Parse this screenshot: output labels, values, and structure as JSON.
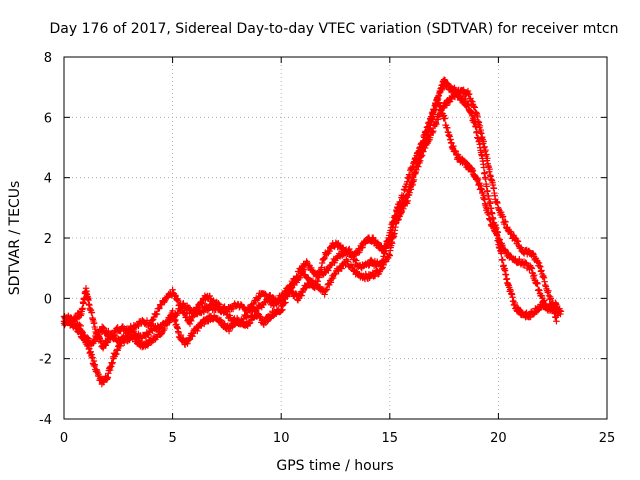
{
  "chart_data": {
    "type": "scatter",
    "title": "Day 176 of 2017, Sidereal Day-to-day VTEC variation (SDTVAR) for receiver mtcn",
    "xlabel": "GPS time / hours",
    "ylabel": "SDTVAR / TECUs",
    "xlim": [
      0,
      25
    ],
    "ylim": [
      -4,
      8
    ],
    "xticks": [
      0,
      5,
      10,
      15,
      20,
      25
    ],
    "yticks": [
      -4,
      -2,
      0,
      2,
      4,
      6,
      8
    ],
    "x_tick_labels": [
      "0",
      "5",
      "10",
      "15",
      "20",
      "25"
    ],
    "y_tick_labels": [
      "-4",
      "-2",
      "0",
      "2",
      "4",
      "6",
      "8"
    ],
    "grid": true,
    "marker": "+",
    "series": [
      {
        "name": "SDTVAR",
        "color": "#ff0000",
        "tracks": [
          [
            [
              0.0,
              -0.6
            ],
            [
              0.4,
              -0.7
            ],
            [
              0.8,
              -0.5
            ],
            [
              1.0,
              0.3
            ],
            [
              1.2,
              -0.3
            ],
            [
              1.5,
              -1.2
            ],
            [
              1.8,
              -1.6
            ],
            [
              2.1,
              -1.3
            ],
            [
              2.5,
              -1.0
            ],
            [
              3.0,
              -1.0
            ],
            [
              3.5,
              -0.8
            ],
            [
              4.0,
              -0.8
            ],
            [
              4.5,
              -0.2
            ],
            [
              5.0,
              0.2
            ],
            [
              5.4,
              -0.3
            ],
            [
              5.8,
              -0.8
            ],
            [
              6.2,
              -0.2
            ],
            [
              6.6,
              0.1
            ],
            [
              7.0,
              -0.2
            ],
            [
              7.5,
              -0.4
            ],
            [
              8.0,
              -0.2
            ],
            [
              8.5,
              -0.4
            ],
            [
              9.0,
              -0.3
            ],
            [
              9.5,
              0.1
            ],
            [
              10.0,
              -0.2
            ],
            [
              10.5,
              0.4
            ],
            [
              11.0,
              0.9
            ],
            [
              11.5,
              0.5
            ],
            [
              12.0,
              0.2
            ],
            [
              12.5,
              0.9
            ],
            [
              13.0,
              1.2
            ],
            [
              13.5,
              0.8
            ],
            [
              14.0,
              0.7
            ],
            [
              14.5,
              0.9
            ],
            [
              15.0,
              1.5
            ],
            [
              15.3,
              2.5
            ],
            [
              15.6,
              3.0
            ],
            [
              16.0,
              3.8
            ],
            [
              16.4,
              4.8
            ],
            [
              16.8,
              5.5
            ],
            [
              17.0,
              6.2
            ],
            [
              17.3,
              6.8
            ],
            [
              17.5,
              7.2
            ],
            [
              17.7,
              7.0
            ],
            [
              18.0,
              6.9
            ],
            [
              18.3,
              6.6
            ],
            [
              18.6,
              6.4
            ],
            [
              18.9,
              5.8
            ],
            [
              19.2,
              4.9
            ],
            [
              19.5,
              3.5
            ],
            [
              19.8,
              2.5
            ],
            [
              20.1,
              1.8
            ],
            [
              20.5,
              1.4
            ],
            [
              21.0,
              1.2
            ],
            [
              21.5,
              1.0
            ],
            [
              21.8,
              0.4
            ],
            [
              22.2,
              -0.3
            ],
            [
              22.6,
              -0.2
            ],
            [
              22.9,
              -0.5
            ]
          ],
          [
            [
              0.0,
              -0.8
            ],
            [
              0.4,
              -0.8
            ],
            [
              0.8,
              -1.0
            ],
            [
              1.1,
              -1.6
            ],
            [
              1.4,
              -2.2
            ],
            [
              1.7,
              -2.8
            ],
            [
              2.0,
              -2.6
            ],
            [
              2.3,
              -1.9
            ],
            [
              2.7,
              -1.4
            ],
            [
              3.2,
              -1.3
            ],
            [
              3.6,
              -1.6
            ],
            [
              4.0,
              -1.4
            ],
            [
              4.5,
              -1.1
            ],
            [
              5.0,
              -0.5
            ],
            [
              5.3,
              -1.2
            ],
            [
              5.6,
              -1.5
            ],
            [
              6.0,
              -1.1
            ],
            [
              6.4,
              -0.8
            ],
            [
              6.8,
              -0.6
            ],
            [
              7.2,
              -0.8
            ],
            [
              7.6,
              -1.0
            ],
            [
              8.0,
              -0.7
            ],
            [
              8.4,
              -0.9
            ],
            [
              8.8,
              -0.5
            ],
            [
              9.2,
              -0.8
            ],
            [
              9.6,
              -0.5
            ],
            [
              10.0,
              -0.4
            ],
            [
              10.4,
              0.3
            ],
            [
              10.8,
              0.0
            ],
            [
              11.2,
              0.5
            ],
            [
              11.6,
              0.4
            ],
            [
              12.0,
              1.4
            ],
            [
              12.4,
              1.8
            ],
            [
              12.8,
              1.7
            ],
            [
              13.2,
              1.4
            ],
            [
              13.6,
              1.6
            ],
            [
              14.0,
              2.0
            ],
            [
              14.3,
              1.9
            ],
            [
              14.7,
              1.6
            ],
            [
              15.0,
              1.9
            ],
            [
              15.3,
              2.9
            ],
            [
              15.6,
              3.4
            ],
            [
              16.0,
              4.3
            ],
            [
              16.3,
              4.8
            ],
            [
              16.6,
              5.4
            ],
            [
              16.9,
              6.0
            ],
            [
              17.2,
              6.6
            ],
            [
              17.5,
              6.0
            ],
            [
              17.8,
              5.2
            ],
            [
              18.1,
              4.7
            ],
            [
              18.4,
              4.5
            ],
            [
              18.7,
              4.3
            ],
            [
              19.0,
              4.0
            ],
            [
              19.3,
              3.4
            ],
            [
              19.6,
              2.6
            ],
            [
              19.9,
              2.2
            ],
            [
              20.2,
              1.2
            ],
            [
              20.5,
              0.3
            ],
            [
              20.8,
              -0.3
            ],
            [
              21.1,
              -0.5
            ],
            [
              21.4,
              -0.6
            ],
            [
              21.7,
              -0.4
            ],
            [
              22.0,
              -0.2
            ],
            [
              22.4,
              -0.4
            ],
            [
              22.8,
              -0.5
            ]
          ],
          [
            [
              0.0,
              -0.7
            ],
            [
              0.5,
              -0.9
            ],
            [
              0.9,
              -1.3
            ],
            [
              1.3,
              -1.5
            ],
            [
              1.7,
              -1.0
            ],
            [
              2.1,
              -1.2
            ],
            [
              2.6,
              -1.4
            ],
            [
              3.1,
              -1.1
            ],
            [
              3.6,
              -1.3
            ],
            [
              4.1,
              -1.0
            ],
            [
              4.6,
              -0.9
            ],
            [
              5.1,
              -0.6
            ],
            [
              5.5,
              -0.2
            ],
            [
              5.9,
              -0.5
            ],
            [
              6.3,
              -0.4
            ],
            [
              6.7,
              -0.3
            ],
            [
              7.1,
              -0.3
            ],
            [
              7.6,
              -0.6
            ],
            [
              8.1,
              -0.9
            ],
            [
              8.6,
              -0.3
            ],
            [
              9.1,
              0.2
            ],
            [
              9.6,
              -0.2
            ],
            [
              10.1,
              0.1
            ],
            [
              10.6,
              0.6
            ],
            [
              11.1,
              1.2
            ],
            [
              11.6,
              0.8
            ],
            [
              12.1,
              0.9
            ],
            [
              12.6,
              1.4
            ],
            [
              13.1,
              1.6
            ],
            [
              13.6,
              1.0
            ],
            [
              14.1,
              1.2
            ],
            [
              14.6,
              1.1
            ],
            [
              15.0,
              2.2
            ],
            [
              15.4,
              3.0
            ],
            [
              15.8,
              3.2
            ],
            [
              16.2,
              4.2
            ],
            [
              16.6,
              5.0
            ],
            [
              17.0,
              5.6
            ],
            [
              17.4,
              6.3
            ],
            [
              17.8,
              6.6
            ],
            [
              18.2,
              6.9
            ],
            [
              18.6,
              6.8
            ],
            [
              19.0,
              6.1
            ],
            [
              19.3,
              5.2
            ],
            [
              19.6,
              4.2
            ],
            [
              19.9,
              3.2
            ],
            [
              20.3,
              2.5
            ],
            [
              20.7,
              2.0
            ],
            [
              21.1,
              1.6
            ],
            [
              21.5,
              1.5
            ],
            [
              21.9,
              1.1
            ],
            [
              22.3,
              0.2
            ],
            [
              22.7,
              -0.8
            ]
          ]
        ]
      }
    ]
  }
}
